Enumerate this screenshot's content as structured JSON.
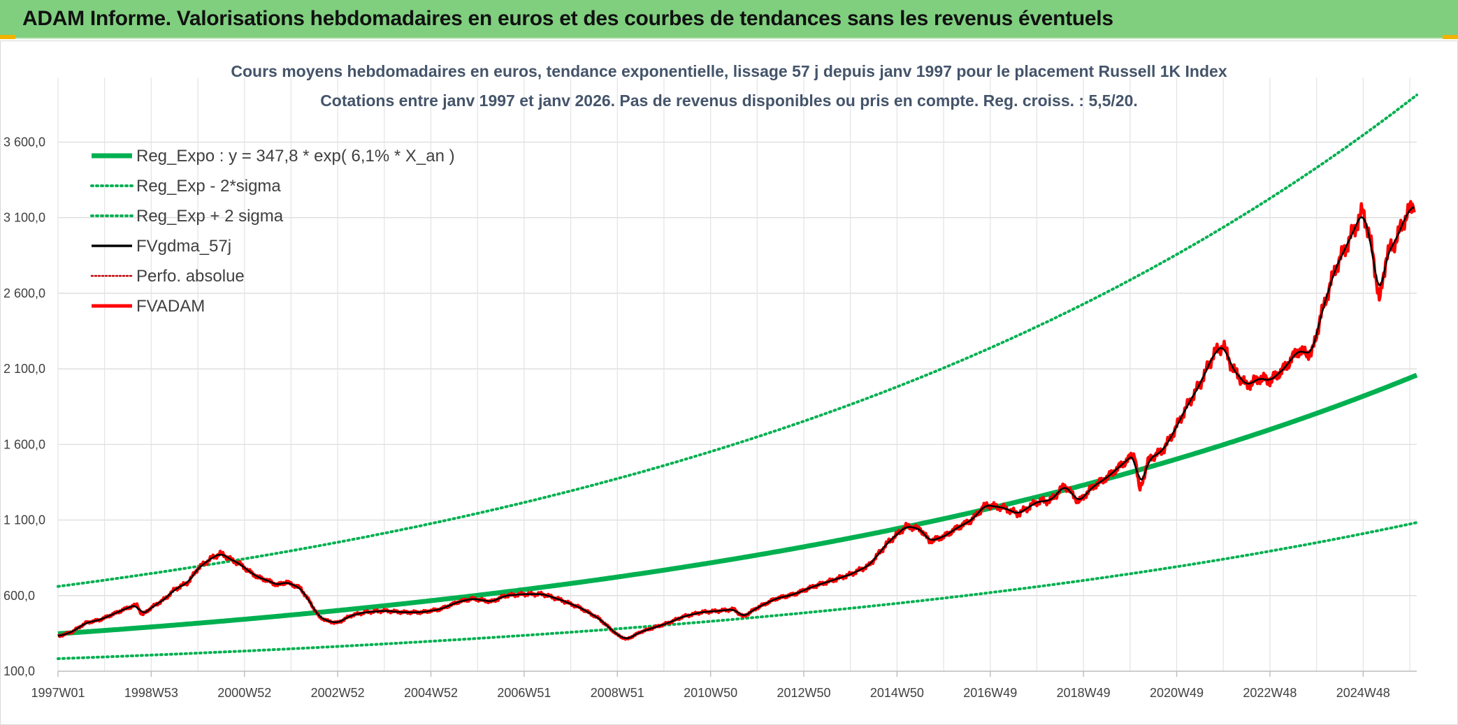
{
  "header": {
    "title": "ADAM Informe. Valorisations hebdomadaires en euros et des courbes de tendances sans les revenus éventuels"
  },
  "colors": {
    "header_bg": "#7fcf7f",
    "trend": "#00b050",
    "price": "#ff0000",
    "smooth": "#000000"
  },
  "chart_data": {
    "type": "line",
    "title": [
      "Cours moyens hebdomadaires en euros, tendance exponentielle, lissage 57 j depuis janv 1997 pour le placement Russell 1K Index",
      "Cotations entre janv 1997 et janv 2026. Pas de revenus disponibles ou pris en compte. Reg. croiss. : 5,5/20."
    ],
    "xlabel": "",
    "ylabel": "",
    "x_tick_labels": [
      "1997W01",
      "1998W53",
      "2000W52",
      "2002W52",
      "2004W52",
      "2006W51",
      "2008W51",
      "2010W50",
      "2012W50",
      "2014W50",
      "2016W49",
      "2018W49",
      "2020W49",
      "2022W48",
      "2024W48"
    ],
    "x_tick_years": [
      1997.0,
      1999.0,
      2001.0,
      2003.0,
      2005.0,
      2007.0,
      2009.0,
      2011.0,
      2013.0,
      2015.0,
      2017.0,
      2019.0,
      2021.0,
      2023.0,
      2025.0
    ],
    "xlim": [
      1997.0,
      2026.15
    ],
    "y_tick_labels": [
      "100,0",
      "600,0",
      "1 100,0",
      "1 600,0",
      "2 100,0",
      "2 600,0",
      "3 100,0",
      "3 600,0"
    ],
    "y_tick_values": [
      100,
      600,
      1100,
      1600,
      2100,
      2600,
      3100,
      3600
    ],
    "ylim": [
      100,
      3990
    ],
    "grid": true,
    "legend_position": "top-left",
    "regression": {
      "intercept": 347.8,
      "growth_rate": 0.061,
      "sigma_factor": 1.9
    },
    "series": [
      {
        "name": "Reg_Expo : y = 347,8 * exp( 6,1% *  X_an )",
        "style": "thick-solid",
        "color": "#00b050"
      },
      {
        "name": "Reg_Exp - 2*sigma",
        "style": "dotted",
        "color": "#00b050"
      },
      {
        "name": "Reg_Exp + 2 sigma",
        "style": "dotted",
        "color": "#00b050"
      },
      {
        "name": "FVgdma_57j",
        "style": "solid",
        "color": "#000000"
      },
      {
        "name": "Perfo. absolue",
        "style": "dotted-thin",
        "color": "#c00000"
      },
      {
        "name": "FVADAM",
        "style": "thick-solid",
        "color": "#ff0000"
      }
    ],
    "fvadam_points": [
      [
        1997.0,
        330
      ],
      [
        1997.3,
        360
      ],
      [
        1997.6,
        420
      ],
      [
        1997.9,
        440
      ],
      [
        1998.2,
        480
      ],
      [
        1998.5,
        520
      ],
      [
        1998.7,
        540
      ],
      [
        1998.8,
        470
      ],
      [
        1999.0,
        520
      ],
      [
        1999.3,
        580
      ],
      [
        1999.5,
        640
      ],
      [
        1999.8,
        690
      ],
      [
        2000.0,
        780
      ],
      [
        2000.3,
        850
      ],
      [
        2000.5,
        880
      ],
      [
        2000.7,
        840
      ],
      [
        2000.9,
        810
      ],
      [
        2001.1,
        760
      ],
      [
        2001.3,
        720
      ],
      [
        2001.5,
        700
      ],
      [
        2001.7,
        670
      ],
      [
        2001.9,
        690
      ],
      [
        2002.2,
        650
      ],
      [
        2002.4,
        560
      ],
      [
        2002.6,
        460
      ],
      [
        2002.8,
        430
      ],
      [
        2003.0,
        420
      ],
      [
        2003.3,
        470
      ],
      [
        2003.6,
        490
      ],
      [
        2004.0,
        500
      ],
      [
        2004.4,
        490
      ],
      [
        2004.8,
        490
      ],
      [
        2005.2,
        510
      ],
      [
        2005.6,
        560
      ],
      [
        2005.9,
        580
      ],
      [
        2006.3,
        560
      ],
      [
        2006.6,
        600
      ],
      [
        2007.0,
        610
      ],
      [
        2007.4,
        610
      ],
      [
        2007.8,
        570
      ],
      [
        2008.2,
        520
      ],
      [
        2008.6,
        450
      ],
      [
        2009.0,
        340
      ],
      [
        2009.2,
        310
      ],
      [
        2009.5,
        360
      ],
      [
        2009.8,
        390
      ],
      [
        2010.1,
        420
      ],
      [
        2010.4,
        460
      ],
      [
        2010.8,
        490
      ],
      [
        2011.2,
        500
      ],
      [
        2011.5,
        510
      ],
      [
        2011.7,
        460
      ],
      [
        2012.0,
        520
      ],
      [
        2012.4,
        580
      ],
      [
        2012.8,
        610
      ],
      [
        2013.2,
        660
      ],
      [
        2013.6,
        700
      ],
      [
        2014.0,
        740
      ],
      [
        2014.4,
        800
      ],
      [
        2014.8,
        950
      ],
      [
        2015.2,
        1060
      ],
      [
        2015.5,
        1040
      ],
      [
        2015.7,
        960
      ],
      [
        2016.0,
        990
      ],
      [
        2016.3,
        1050
      ],
      [
        2016.6,
        1100
      ],
      [
        2016.9,
        1200
      ],
      [
        2017.3,
        1180
      ],
      [
        2017.6,
        1140
      ],
      [
        2018.0,
        1220
      ],
      [
        2018.3,
        1230
      ],
      [
        2018.6,
        1330
      ],
      [
        2018.9,
        1220
      ],
      [
        2019.2,
        1320
      ],
      [
        2019.5,
        1380
      ],
      [
        2019.8,
        1460
      ],
      [
        2020.1,
        1540
      ],
      [
        2020.2,
        1290
      ],
      [
        2020.4,
        1500
      ],
      [
        2020.7,
        1560
      ],
      [
        2020.9,
        1660
      ],
      [
        2021.2,
        1840
      ],
      [
        2021.5,
        2000
      ],
      [
        2021.8,
        2200
      ],
      [
        2022.0,
        2260
      ],
      [
        2022.2,
        2100
      ],
      [
        2022.5,
        1990
      ],
      [
        2022.8,
        2040
      ],
      [
        2023.0,
        2020
      ],
      [
        2023.3,
        2100
      ],
      [
        2023.6,
        2220
      ],
      [
        2023.9,
        2200
      ],
      [
        2024.1,
        2460
      ],
      [
        2024.4,
        2760
      ],
      [
        2024.7,
        2950
      ],
      [
        2025.0,
        3150
      ],
      [
        2025.2,
        2880
      ],
      [
        2025.35,
        2540
      ],
      [
        2025.5,
        2850
      ],
      [
        2025.7,
        2950
      ],
      [
        2025.9,
        3100
      ],
      [
        2026.1,
        3200
      ]
    ]
  },
  "legend": {
    "items": [
      "Reg_Expo : y = 347,8 * exp( 6,1% *  X_an )",
      "Reg_Exp - 2*sigma",
      "Reg_Exp + 2 sigma",
      "FVgdma_57j",
      "Perfo. absolue",
      "FVADAM"
    ]
  }
}
